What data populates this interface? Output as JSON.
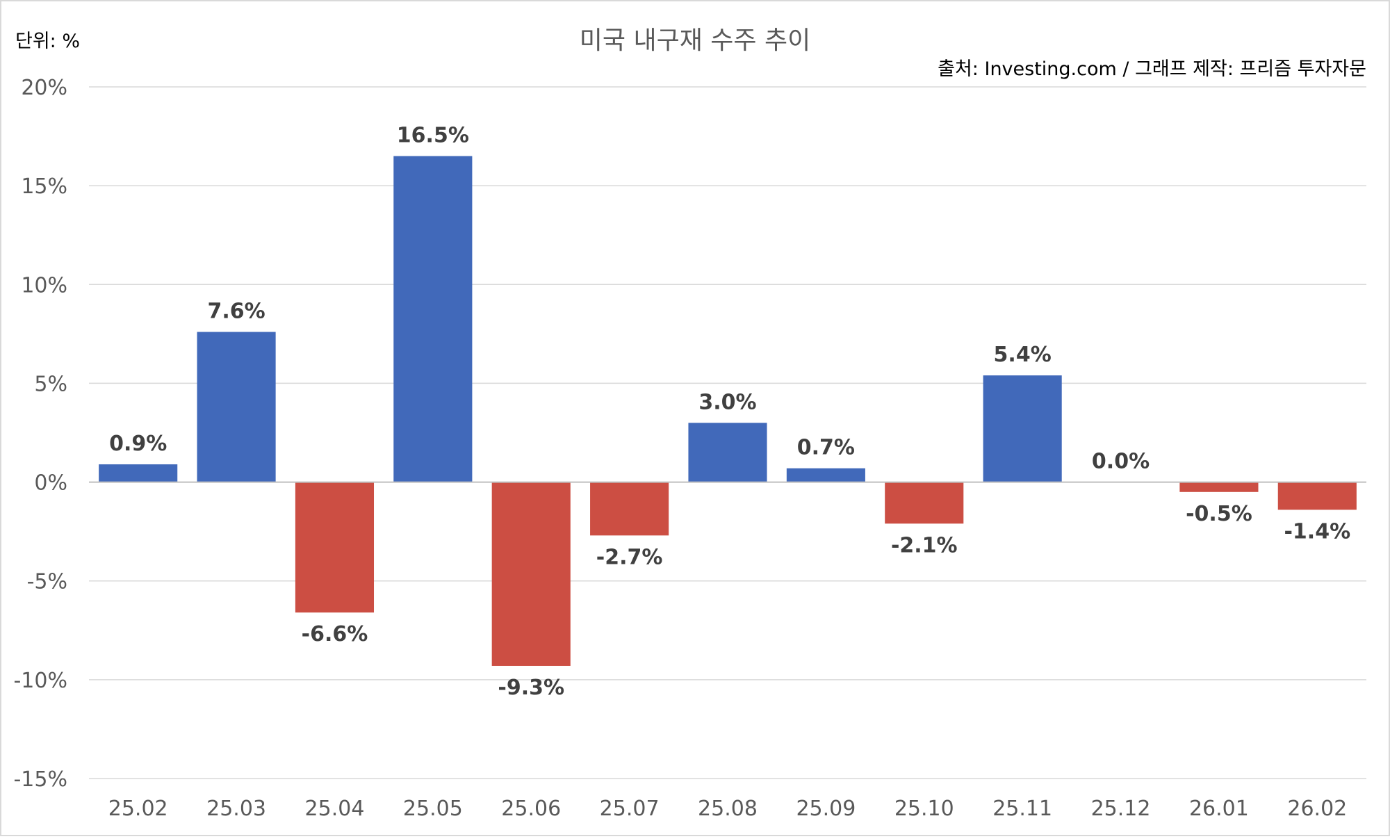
{
  "chart_data": {
    "type": "bar",
    "title": "미국 내구재 수주 추이",
    "unit_label": "단위: %",
    "source": "출처: Investing.com / 그래프 제작: 프리즘 투자자문",
    "categories": [
      "25.02",
      "25.03",
      "25.04",
      "25.05",
      "25.06",
      "25.07",
      "25.08",
      "25.09",
      "25.10",
      "25.11",
      "25.12",
      "26.01",
      "26.02"
    ],
    "values": [
      0.9,
      7.6,
      -6.6,
      16.5,
      -9.3,
      -2.7,
      3.0,
      0.7,
      -2.1,
      5.4,
      0.0,
      -0.5,
      -1.4
    ],
    "data_labels": [
      "0.9%",
      "7.6%",
      "-6.6%",
      "16.5%",
      "-9.3%",
      "-2.7%",
      "3.0%",
      "0.7%",
      "-2.1%",
      "5.4%",
      "0.0%",
      "-0.5%",
      "-1.4%"
    ],
    "ylim": [
      -15,
      20
    ],
    "yticks": [
      20,
      15,
      10,
      5,
      0,
      -5,
      -10,
      -15
    ],
    "ytick_labels": [
      "20%",
      "15%",
      "10%",
      "5%",
      "0%",
      "-5%",
      "-10%",
      "-15%"
    ],
    "grid": true,
    "legend": "none",
    "colors": {
      "positive": "#4169BA",
      "negative": "#CC4E43",
      "grid": "#D9D9D9",
      "zero_line": "#BFBFBF",
      "title": "#595959",
      "axis_text": "#595959",
      "data_label": "#404040",
      "header_text": "#000000",
      "border": "#D9D9D9"
    }
  }
}
